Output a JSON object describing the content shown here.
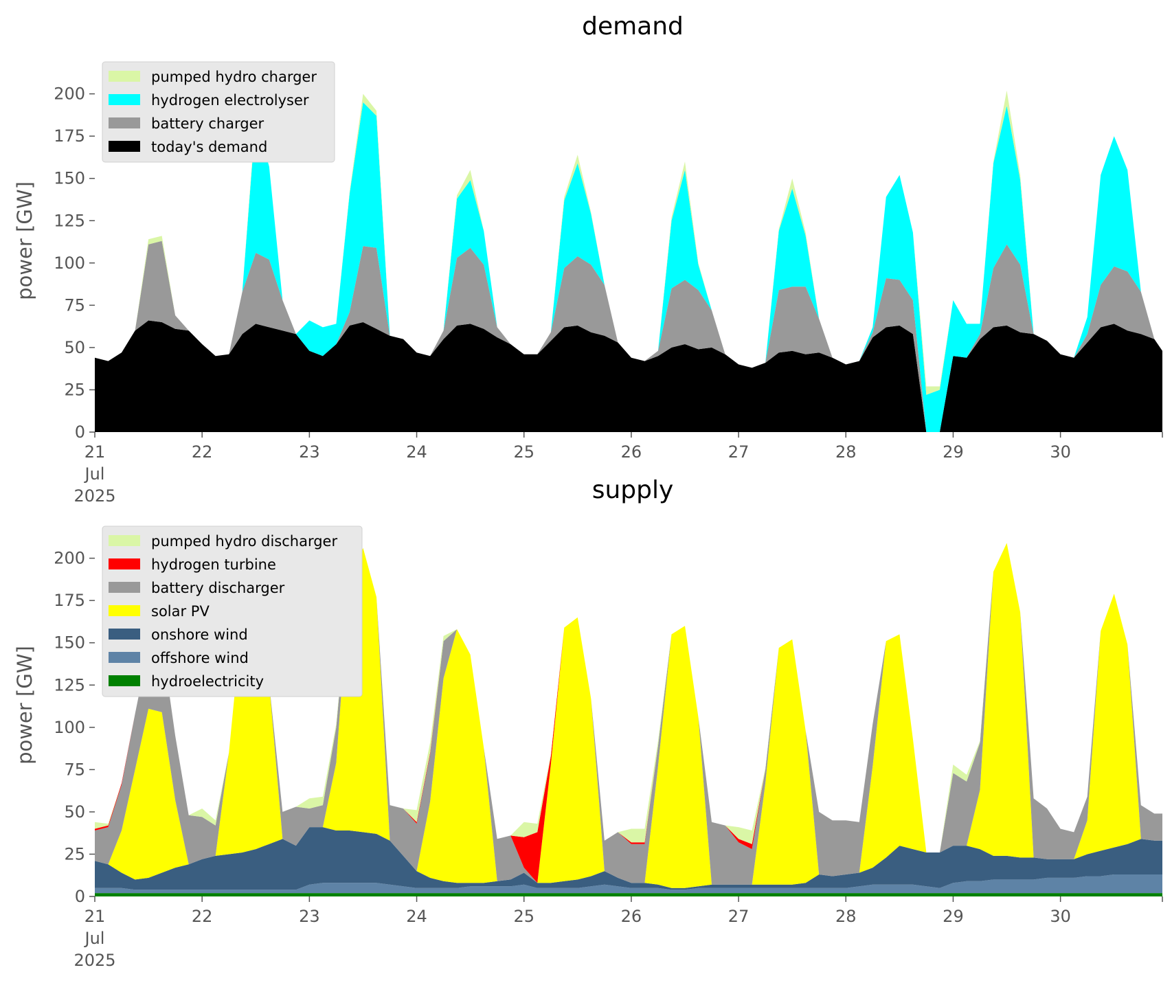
{
  "chart_data": [
    {
      "type": "area",
      "stacked": true,
      "title": "demand",
      "ylabel": "power [GW]",
      "xlabel": "",
      "ylim": [
        0,
        210
      ],
      "yticks": [
        0,
        25,
        50,
        75,
        100,
        125,
        150,
        175,
        200
      ],
      "xticks": [
        21,
        22,
        23,
        24,
        25,
        26,
        27,
        28,
        29,
        30
      ],
      "xlim": [
        21,
        30.95
      ],
      "x_first_tick_extra": [
        "Jul",
        "2025"
      ],
      "grid": false,
      "legend_position": "upper-left",
      "legend_order": [
        "pumped hydro charger",
        "hydrogen electrolyser",
        "battery charger",
        "today's demand"
      ],
      "x": [
        21.0,
        21.125,
        21.25,
        21.375,
        21.5,
        21.625,
        21.75,
        21.875,
        22.0,
        22.125,
        22.25,
        22.375,
        22.5,
        22.625,
        22.75,
        22.875,
        23.0,
        23.125,
        23.25,
        23.375,
        23.5,
        23.625,
        23.75,
        23.875,
        24.0,
        24.125,
        24.25,
        24.375,
        24.5,
        24.625,
        24.75,
        24.875,
        25.0,
        25.125,
        25.25,
        25.375,
        25.5,
        25.625,
        25.75,
        25.875,
        26.0,
        26.125,
        26.25,
        26.375,
        26.5,
        26.625,
        26.75,
        26.875,
        27.0,
        27.125,
        27.25,
        27.375,
        27.5,
        27.625,
        27.75,
        27.875,
        28.0,
        28.125,
        28.25,
        28.375,
        28.5,
        28.625,
        28.75,
        28.875,
        29.0,
        29.125,
        29.25,
        29.375,
        29.5,
        29.625,
        29.75,
        29.875,
        30.0,
        30.125,
        30.25,
        30.375,
        30.5,
        30.625,
        30.75,
        30.875,
        30.95
      ],
      "series": [
        {
          "name": "today's demand",
          "color": "#000000",
          "values": [
            44,
            42,
            47,
            60,
            66,
            65,
            61,
            60,
            52,
            45,
            46,
            58,
            64,
            62,
            60,
            58,
            48,
            45,
            52,
            63,
            65,
            61,
            57,
            55,
            47,
            45,
            55,
            63,
            64,
            61,
            56,
            52,
            46,
            46,
            54,
            62,
            63,
            59,
            57,
            53,
            44,
            42,
            45,
            50,
            52,
            49,
            50,
            46,
            40,
            38,
            41,
            47,
            48,
            46,
            47,
            44,
            40,
            42,
            56,
            62,
            63,
            58,
            0,
            0,
            45,
            44,
            55,
            62,
            63,
            59,
            58,
            54,
            46,
            44,
            53,
            62,
            64,
            60,
            58,
            55,
            48
          ]
        },
        {
          "name": "battery charger",
          "color": "#999999",
          "values": [
            0,
            0,
            0,
            0,
            45,
            48,
            8,
            0,
            0,
            0,
            0,
            25,
            42,
            40,
            18,
            0,
            0,
            0,
            0,
            8,
            45,
            48,
            0,
            0,
            0,
            0,
            5,
            40,
            45,
            38,
            6,
            0,
            0,
            0,
            5,
            35,
            41,
            40,
            30,
            0,
            0,
            0,
            3,
            35,
            38,
            35,
            22,
            0,
            0,
            0,
            0,
            37,
            38,
            40,
            20,
            0,
            0,
            0,
            3,
            29,
            27,
            20,
            0,
            0,
            0,
            0,
            3,
            35,
            48,
            40,
            0,
            0,
            0,
            0,
            5,
            25,
            34,
            35,
            25,
            0,
            0
          ]
        },
        {
          "name": "hydrogen electrolyser",
          "color": "#00ffff",
          "values": [
            0,
            0,
            0,
            0,
            0,
            0,
            0,
            0,
            0,
            0,
            0,
            0,
            80,
            55,
            0,
            0,
            18,
            17,
            12,
            70,
            85,
            78,
            0,
            0,
            0,
            0,
            0,
            35,
            40,
            20,
            0,
            0,
            0,
            0,
            0,
            40,
            55,
            30,
            0,
            0,
            0,
            0,
            0,
            40,
            65,
            15,
            0,
            0,
            0,
            0,
            0,
            35,
            58,
            30,
            0,
            0,
            0,
            0,
            3,
            48,
            62,
            40,
            22,
            25,
            33,
            20,
            6,
            62,
            82,
            50,
            0,
            0,
            0,
            0,
            10,
            65,
            77,
            60,
            0,
            0,
            0
          ]
        },
        {
          "name": "pumped hydro charger",
          "color": "#daf6a6",
          "values": [
            0,
            0,
            0,
            0,
            3,
            3,
            0,
            0,
            0,
            0,
            0,
            0,
            3,
            0,
            0,
            0,
            0,
            0,
            0,
            1,
            5,
            3,
            0,
            0,
            0,
            0,
            0,
            2,
            6,
            0,
            0,
            0,
            0,
            0,
            0,
            2,
            5,
            1,
            0,
            0,
            0,
            0,
            0,
            2,
            5,
            1,
            0,
            0,
            0,
            0,
            0,
            1,
            6,
            2,
            0,
            0,
            0,
            0,
            0,
            0,
            0,
            0,
            5,
            2,
            0,
            0,
            0,
            1,
            9,
            3,
            0,
            0,
            0,
            0,
            0,
            0,
            0,
            0,
            0,
            0,
            0
          ]
        }
      ]
    },
    {
      "type": "area",
      "stacked": true,
      "title": "supply",
      "ylabel": "power [GW]",
      "xlabel": "",
      "ylim": [
        0,
        210
      ],
      "yticks": [
        0,
        25,
        50,
        75,
        100,
        125,
        150,
        175,
        200
      ],
      "xticks": [
        21,
        22,
        23,
        24,
        25,
        26,
        27,
        28,
        29,
        30
      ],
      "xlim": [
        21,
        30.95
      ],
      "x_first_tick_extra": [
        "Jul",
        "2025"
      ],
      "grid": false,
      "legend_position": "upper-left",
      "legend_order": [
        "pumped hydro discharger",
        "hydrogen turbine",
        "battery discharger",
        "solar PV",
        "onshore wind",
        "offshore wind",
        "hydroelectricity"
      ],
      "x": [
        21.0,
        21.125,
        21.25,
        21.375,
        21.5,
        21.625,
        21.75,
        21.875,
        22.0,
        22.125,
        22.25,
        22.375,
        22.5,
        22.625,
        22.75,
        22.875,
        23.0,
        23.125,
        23.25,
        23.375,
        23.5,
        23.625,
        23.75,
        23.875,
        24.0,
        24.125,
        24.25,
        24.375,
        24.5,
        24.625,
        24.75,
        24.875,
        25.0,
        25.125,
        25.25,
        25.375,
        25.5,
        25.625,
        25.75,
        25.875,
        26.0,
        26.125,
        26.25,
        26.375,
        26.5,
        26.625,
        26.75,
        26.875,
        27.0,
        27.125,
        27.25,
        27.375,
        27.5,
        27.625,
        27.75,
        27.875,
        28.0,
        28.125,
        28.25,
        28.375,
        28.5,
        28.625,
        28.75,
        28.875,
        29.0,
        29.125,
        29.25,
        29.375,
        29.5,
        29.625,
        29.75,
        29.875,
        30.0,
        30.125,
        30.25,
        30.375,
        30.5,
        30.625,
        30.75,
        30.875,
        30.95
      ],
      "series": [
        {
          "name": "hydroelectricity",
          "color": "#008000",
          "values": [
            2,
            2,
            2,
            2,
            2,
            2,
            2,
            2,
            2,
            2,
            2,
            2,
            2,
            2,
            2,
            2,
            2,
            2,
            2,
            2,
            2,
            2,
            2,
            2,
            2,
            2,
            2,
            2,
            2,
            2,
            2,
            2,
            2,
            2,
            2,
            2,
            2,
            2,
            2,
            2,
            2,
            2,
            2,
            2,
            2,
            2,
            2,
            2,
            2,
            2,
            2,
            2,
            2,
            2,
            2,
            2,
            2,
            2,
            2,
            2,
            2,
            2,
            2,
            2,
            2,
            2,
            2,
            2,
            2,
            2,
            2,
            2,
            2,
            2,
            2,
            2,
            2,
            2,
            2,
            2,
            2
          ]
        },
        {
          "name": "offshore wind",
          "color": "#5e83a6",
          "values": [
            3,
            3,
            3,
            2,
            2,
            2,
            2,
            2,
            2,
            2,
            2,
            2,
            2,
            2,
            2,
            2,
            5,
            6,
            6,
            6,
            6,
            6,
            5,
            4,
            3,
            3,
            3,
            3,
            4,
            4,
            4,
            4,
            5,
            3,
            3,
            3,
            3,
            4,
            5,
            4,
            3,
            3,
            3,
            2,
            2,
            3,
            3,
            3,
            3,
            3,
            3,
            3,
            3,
            3,
            3,
            3,
            3,
            4,
            5,
            5,
            5,
            5,
            4,
            3,
            6,
            7,
            7,
            8,
            8,
            8,
            8,
            9,
            9,
            9,
            10,
            10,
            11,
            11,
            11,
            11,
            11
          ]
        },
        {
          "name": "onshore wind",
          "color": "#3a5e80",
          "values": [
            16,
            14,
            9,
            6,
            7,
            10,
            13,
            15,
            18,
            20,
            21,
            22,
            24,
            27,
            30,
            26,
            34,
            33,
            31,
            31,
            30,
            29,
            26,
            18,
            10,
            6,
            4,
            3,
            2,
            2,
            3,
            4,
            7,
            3,
            3,
            4,
            5,
            6,
            8,
            5,
            3,
            3,
            2,
            1,
            1,
            1,
            2,
            2,
            2,
            2,
            2,
            2,
            2,
            3,
            8,
            7,
            8,
            8,
            10,
            16,
            23,
            21,
            20,
            21,
            22,
            21,
            19,
            14,
            14,
            13,
            13,
            11,
            11,
            11,
            13,
            15,
            16,
            18,
            21,
            20,
            20
          ]
        },
        {
          "name": "solar PV",
          "color": "#ffff00",
          "values": [
            0,
            0,
            25,
            65,
            100,
            95,
            40,
            0,
            0,
            0,
            60,
            140,
            160,
            95,
            0,
            0,
            0,
            0,
            40,
            148,
            168,
            140,
            0,
            0,
            0,
            45,
            120,
            150,
            135,
            80,
            0,
            0,
            0,
            0,
            70,
            150,
            155,
            105,
            0,
            0,
            0,
            0,
            70,
            150,
            155,
            100,
            0,
            0,
            0,
            0,
            60,
            140,
            145,
            90,
            0,
            0,
            0,
            0,
            60,
            128,
            125,
            65,
            0,
            0,
            0,
            0,
            35,
            168,
            185,
            145,
            0,
            0,
            0,
            0,
            20,
            130,
            150,
            118,
            0,
            0,
            0
          ]
        },
        {
          "name": "battery discharger",
          "color": "#999999",
          "values": [
            18,
            22,
            27,
            33,
            36,
            42,
            38,
            29,
            25,
            18,
            0,
            0,
            0,
            0,
            16,
            23,
            11,
            13,
            21,
            0,
            0,
            0,
            21,
            28,
            28,
            28,
            22,
            0,
            0,
            0,
            25,
            26,
            3,
            0,
            0,
            0,
            0,
            0,
            18,
            27,
            23,
            23,
            12,
            0,
            0,
            0,
            37,
            35,
            25,
            21,
            8,
            0,
            0,
            0,
            37,
            33,
            32,
            30,
            25,
            0,
            0,
            0,
            0,
            0,
            43,
            38,
            28,
            0,
            0,
            0,
            35,
            30,
            18,
            16,
            14,
            0,
            0,
            0,
            20,
            16,
            16
          ]
        },
        {
          "name": "hydrogen turbine",
          "color": "#ff0000",
          "values": [
            1,
            1,
            1,
            0,
            0,
            0,
            0,
            0,
            0,
            0,
            0,
            0,
            0,
            0,
            0,
            0,
            0,
            0,
            0,
            0,
            0,
            0,
            0,
            0,
            1,
            1,
            0,
            0,
            0,
            0,
            0,
            0,
            18,
            30,
            5,
            0,
            0,
            0,
            0,
            0,
            1,
            1,
            0,
            0,
            0,
            0,
            0,
            0,
            2,
            3,
            0,
            0,
            0,
            0,
            0,
            0,
            0,
            0,
            0,
            0,
            0,
            0,
            0,
            0,
            0,
            0,
            0,
            0,
            0,
            0,
            0,
            0,
            0,
            0,
            0,
            0,
            0,
            0,
            0,
            0,
            0
          ]
        },
        {
          "name": "pumped hydro discharger",
          "color": "#daf6a6",
          "values": [
            4,
            1,
            0,
            0,
            0,
            0,
            0,
            0,
            5,
            3,
            0,
            0,
            0,
            0,
            0,
            0,
            6,
            5,
            2,
            0,
            0,
            0,
            0,
            0,
            7,
            6,
            3,
            0,
            0,
            0,
            0,
            0,
            9,
            5,
            1,
            0,
            0,
            0,
            0,
            0,
            8,
            8,
            3,
            0,
            0,
            0,
            0,
            0,
            7,
            8,
            1,
            0,
            0,
            0,
            0,
            0,
            0,
            0,
            0,
            0,
            0,
            0,
            0,
            0,
            5,
            4,
            1,
            0,
            0,
            0,
            0,
            0,
            0,
            0,
            0,
            0,
            0,
            0,
            0,
            0,
            0
          ]
        }
      ]
    }
  ]
}
